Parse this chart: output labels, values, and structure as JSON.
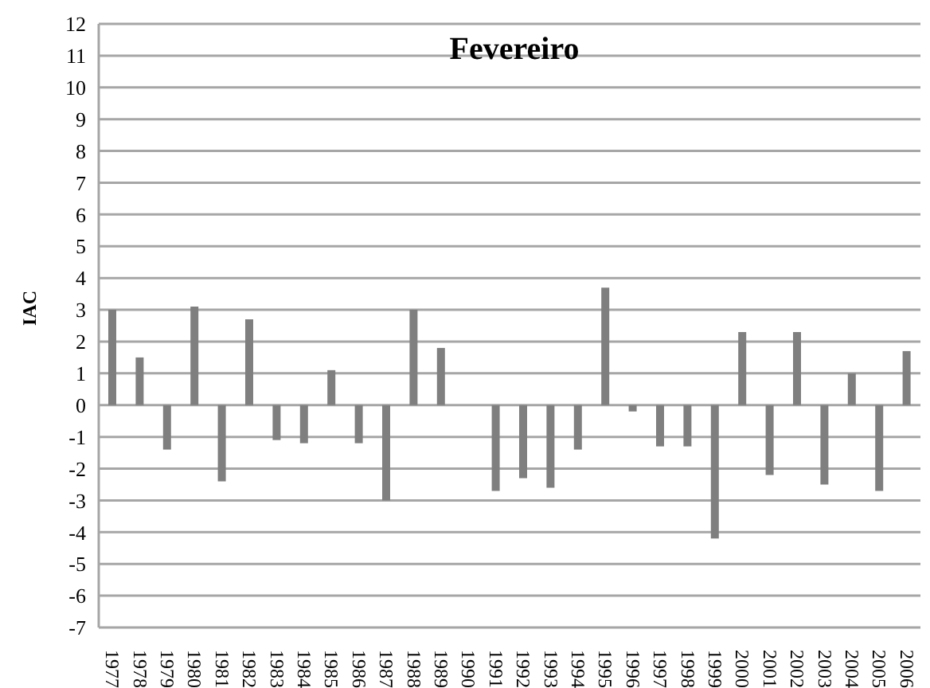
{
  "chart_data": {
    "type": "bar",
    "title": "Fevereiro",
    "ylabel": "IAC",
    "categories": [
      "1977",
      "1978",
      "1979",
      "1980",
      "1981",
      "1982",
      "1983",
      "1984",
      "1985",
      "1986",
      "1987",
      "1988",
      "1989",
      "1990",
      "1991",
      "1992",
      "1993",
      "1994",
      "1995",
      "1996",
      "1997",
      "1998",
      "1999",
      "2000",
      "2001",
      "2002",
      "2003",
      "2004",
      "2005",
      "2006"
    ],
    "values": [
      3.0,
      1.5,
      -1.4,
      3.1,
      -2.4,
      2.7,
      -1.1,
      -1.2,
      1.1,
      -1.2,
      -3.0,
      3.0,
      1.8,
      0,
      -2.7,
      -2.3,
      -2.6,
      -1.4,
      3.7,
      -0.2,
      -1.3,
      -1.3,
      -4.2,
      2.3,
      -2.2,
      2.3,
      -2.5,
      1.0,
      -2.7,
      1.7
    ],
    "color": "#7f7f7f",
    "ylim": [
      -7,
      12
    ],
    "yticks": [
      -7,
      -6,
      -5,
      -4,
      -3,
      -2,
      -1,
      0,
      1,
      2,
      3,
      4,
      5,
      6,
      7,
      8,
      9,
      10,
      11,
      12
    ],
    "grid": "y",
    "legend": false
  }
}
